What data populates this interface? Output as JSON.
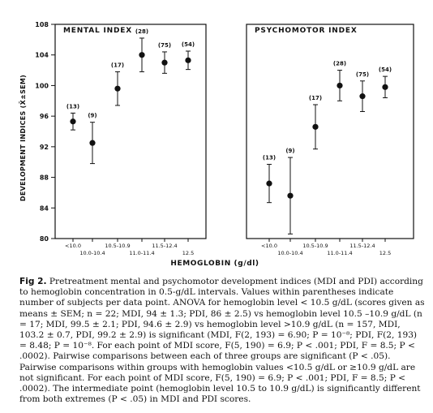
{
  "chart_data": [
    {
      "type": "scatter",
      "title": "MENTAL INDEX",
      "ylabel": "DEVELOPMENT INDICES (X̄±SEM)",
      "xlabel": "HEMOGLOBIN (g/dl)",
      "ylim": [
        80,
        108
      ],
      "yticks": [
        80,
        84,
        88,
        92,
        96,
        100,
        104,
        108
      ],
      "categories": [
        "<10.0",
        "10.0-10.4",
        "10.5-10.9",
        "11.0-11.4",
        "11.5-12.4",
        "12.5"
      ],
      "values": [
        95.3,
        92.5,
        99.6,
        104.0,
        103.0,
        103.3
      ],
      "errors": [
        1.1,
        2.7,
        2.2,
        2.2,
        1.4,
        1.2
      ],
      "counts": [
        "(13)",
        "(9)",
        "(17)",
        "(28)",
        "(75)",
        "(54)"
      ],
      "grid": false
    },
    {
      "type": "scatter",
      "title": "PSYCHOMOTOR INDEX",
      "ylim": [
        80,
        108
      ],
      "categories": [
        "<10.0",
        "10.0-10.4",
        "10.5-10.9",
        "11.0-11.4",
        "11.5-12.4",
        "12.5"
      ],
      "values": [
        87.2,
        85.6,
        94.6,
        100.0,
        98.6,
        99.8
      ],
      "errors": [
        2.5,
        5.0,
        2.9,
        2.0,
        2.0,
        1.4
      ],
      "counts": [
        "(13)",
        "(9)",
        "(17)",
        "(28)",
        "(75)",
        "(54)"
      ],
      "grid": false
    }
  ],
  "caption": {
    "label": "Fig 2.",
    "text": "Pretreatment mental and psychomotor development indices (MDI and PDI) according to hemoglobin concentration in 0.5-g/dL intervals. Values within parentheses indicate number of subjects per data point. ANOVA for hemoglobin level < 10.5 g/dL (scores given as means ± SEM; n = 22; MDI, 94 ± 1.3; PDI, 86 ± 2.5) vs hemoglobin level 10.5 –10.9 g/dL (n = 17; MDI, 99.5 ± 2.1; PDI, 94.6 ± 2.9) vs hemoglobin level >10.9 g/dL (n = 157, MDI, 103.2 ± 0.7, PDI, 99.2 ± 2.9) is significant (MDI, F(2, 193) = 6.90; P = 10⁻⁸; PDI, F(2, 193) = 8.48; P = 10⁻⁸. For each point of MDI score, F(5, 190) = 6.9; P < .001; PDI, F = 8.5; P < .0002). Pairwise comparisons between each of three groups are significant (P < .05). Pairwise comparisons within groups with hemoglobin values <10.5 g/dL or ≥10.9 g/dL are not significant. For each point of MDI score, F(5, 190) = 6.9; P < .001; PDI, F = 8.5; P < .0002). The intermediate point (hemoglobin level 10.5 to 10.9 g/dL) is significantly different from both extremes (P < .05) in MDI and PDI scores."
  }
}
